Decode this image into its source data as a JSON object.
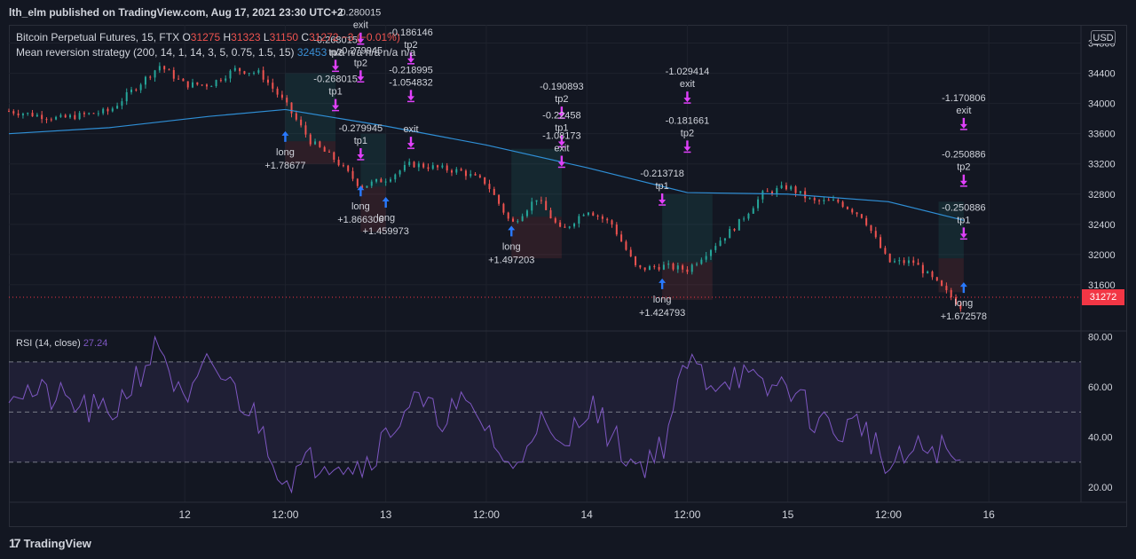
{
  "header": {
    "published": "lth_elm published on TradingView.com, Aug 17, 2021 23:30 UTC+2"
  },
  "legend": {
    "symbol": "Bitcoin Perpetual Futures, 15, FTX",
    "o_label": "O",
    "o_value": "31275",
    "h_label": "H",
    "h_value": "31323",
    "l_label": "L",
    "l_value": "31150",
    "c_label": "C",
    "c_value": "31272",
    "change": "−3 (−0.01%)",
    "strategy": "Mean reversion strategy (200, 14, 1, 14, 3, 5, 0.75, 1.5, 15)",
    "strategy_value": "32453",
    "na_values": "n/a  n/a  n/a  n/a  n/a"
  },
  "rsi_legend": {
    "label": "RSI (14, close)",
    "value": "27.24"
  },
  "currency_button": "USD",
  "last_price": "31272",
  "footer": {
    "brand": "TradingView",
    "logo": "17"
  },
  "colors": {
    "background": "#131722",
    "up": "#26a69a",
    "down": "#ef5350",
    "ma": "#2f8fd6",
    "rsi": "#7e57c2",
    "signal": "#e040fb",
    "entry": "#2979ff"
  },
  "chart_data": [
    {
      "type": "candlestick",
      "title": "",
      "y_axis_labels": [
        "34800",
        "34400",
        "34000",
        "33600",
        "33200",
        "32800",
        "32400",
        "32000",
        "31600"
      ],
      "ylim": [
        31000,
        34900
      ],
      "x_axis_labels": [
        "12",
        "12:00",
        "13",
        "12:00",
        "14",
        "12:00",
        "15",
        "12:00",
        "16"
      ],
      "x_axis_dates": [
        "Aug 12",
        "Aug 12 12:00",
        "Aug 13",
        "Aug 13 12:00",
        "Aug 14",
        "Aug 14 12:00",
        "Aug 15",
        "Aug 15 12:00",
        "Aug 16"
      ],
      "close_path": [
        [
          "Aug 11 03:00",
          33900
        ],
        [
          "Aug 11 09:00",
          33800
        ],
        [
          "Aug 11 15:00",
          33900
        ],
        [
          "Aug 11 21:00",
          34500
        ],
        [
          "Aug 12 00:00",
          34250
        ],
        [
          "Aug 12 03:00",
          34250
        ],
        [
          "Aug 12 06:00",
          34450
        ],
        [
          "Aug 12 09:00",
          34400
        ],
        [
          "Aug 12 12:00",
          34000
        ],
        [
          "Aug 12 15:00",
          33500
        ],
        [
          "Aug 12 18:00",
          33250
        ],
        [
          "Aug 12 21:00",
          32900
        ],
        [
          "Aug 13 00:00",
          33000
        ],
        [
          "Aug 13 03:00",
          33200
        ],
        [
          "Aug 13 09:00",
          33100
        ],
        [
          "Aug 13 12:00",
          32950
        ],
        [
          "Aug 13 15:00",
          32400
        ],
        [
          "Aug 13 18:00",
          32750
        ],
        [
          "Aug 13 21:00",
          32300
        ],
        [
          "Aug 14 00:00",
          32600
        ],
        [
          "Aug 14 03:00",
          32400
        ],
        [
          "Aug 14 06:00",
          31800
        ],
        [
          "Aug 14 09:00",
          31850
        ],
        [
          "Aug 14 12:00",
          31800
        ],
        [
          "Aug 14 15:00",
          32100
        ],
        [
          "Aug 14 18:00",
          32400
        ],
        [
          "Aug 14 21:00",
          32800
        ],
        [
          "Aug 15 00:00",
          32900
        ],
        [
          "Aug 15 03:00",
          32700
        ],
        [
          "Aug 15 06:00",
          32700
        ],
        [
          "Aug 15 09:00",
          32500
        ],
        [
          "Aug 15 12:00",
          31900
        ],
        [
          "Aug 15 15:00",
          31900
        ],
        [
          "Aug 15 18:00",
          31600
        ],
        [
          "Aug 15 21:00",
          31272
        ]
      ],
      "moving_average": [
        [
          "Aug 11 03:00",
          33600
        ],
        [
          "Aug 11 15:00",
          33680
        ],
        [
          "Aug 12 03:00",
          33830
        ],
        [
          "Aug 12 12:00",
          33920
        ],
        [
          "Aug 13 00:00",
          33700
        ],
        [
          "Aug 13 12:00",
          33450
        ],
        [
          "Aug 14 00:00",
          33150
        ],
        [
          "Aug 14 12:00",
          32820
        ],
        [
          "Aug 15 00:00",
          32800
        ],
        [
          "Aug 15 12:00",
          32700
        ],
        [
          "Aug 15 21:00",
          32453
        ]
      ],
      "signals": [
        {
          "time": "Aug 12 12:00",
          "dir": "up",
          "price": 33550,
          "lines": [
            "long",
            "+1.78677"
          ]
        },
        {
          "time": "Aug 12 21:00",
          "dir": "up",
          "price": 32830,
          "lines": [
            "long",
            "+1.866306"
          ]
        },
        {
          "time": "Aug 13 00:00",
          "dir": "up",
          "price": 32680,
          "lines": [
            "long",
            "+1.459973"
          ]
        },
        {
          "time": "Aug 13 15:00",
          "dir": "up",
          "price": 32300,
          "lines": [
            "long",
            "+1.497203"
          ]
        },
        {
          "time": "Aug 14 09:00",
          "dir": "up",
          "price": 31600,
          "lines": [
            "long",
            "+1.424793"
          ]
        },
        {
          "time": "Aug 15 21:00",
          "dir": "up",
          "price": 31550,
          "lines": [
            "long",
            "+1.672578"
          ]
        },
        {
          "time": "Aug 12 18:00",
          "dir": "down",
          "price": 34520,
          "lines": [
            "-0.268015",
            "tp2"
          ]
        },
        {
          "time": "Aug 12 18:00",
          "dir": "down",
          "price": 34000,
          "lines": [
            "-0.268015",
            "tp1"
          ]
        },
        {
          "time": "Aug 12 21:00",
          "dir": "down",
          "price": 34880,
          "lines": [
            "0.280015",
            "exit"
          ]
        },
        {
          "time": "Aug 12 21:00",
          "dir": "down",
          "price": 34380,
          "lines": [
            "-0.279945",
            "tp2"
          ]
        },
        {
          "time": "Aug 12 21:00",
          "dir": "down",
          "price": 33350,
          "lines": [
            "-0.279945",
            "tp1"
          ]
        },
        {
          "time": "Aug 13 03:00",
          "dir": "down",
          "price": 34620,
          "lines": [
            "-0.186146",
            "tp2"
          ]
        },
        {
          "time": "Aug 13 03:00",
          "dir": "down",
          "price": 34120,
          "lines": [
            "-0.218995",
            "-1.054832"
          ]
        },
        {
          "time": "Aug 13 03:00",
          "dir": "down",
          "price": 33500,
          "lines": [
            "exit"
          ]
        },
        {
          "time": "Aug 13 21:00",
          "dir": "down",
          "price": 33900,
          "lines": [
            "-0.190893",
            "tp2"
          ]
        },
        {
          "time": "Aug 13 21:00",
          "dir": "down",
          "price": 33520,
          "lines": [
            "-0.22458",
            "tp1"
          ]
        },
        {
          "time": "Aug 13 21:00",
          "dir": "down",
          "price": 33250,
          "lines": [
            "-1.08173",
            "exit"
          ]
        },
        {
          "time": "Aug 14 12:00",
          "dir": "down",
          "price": 34100,
          "lines": [
            "-1.029414",
            "exit"
          ]
        },
        {
          "time": "Aug 14 12:00",
          "dir": "down",
          "price": 33450,
          "lines": [
            "-0.181661",
            "tp2"
          ]
        },
        {
          "time": "Aug 14 09:00",
          "dir": "down",
          "price": 32750,
          "lines": [
            "-0.213718",
            "tp1"
          ]
        },
        {
          "time": "Aug 15 21:00",
          "dir": "down",
          "price": 33750,
          "lines": [
            "-1.170806",
            "exit"
          ]
        },
        {
          "time": "Aug 15 21:00",
          "dir": "down",
          "price": 33000,
          "lines": [
            "-0.250886",
            "tp2"
          ]
        },
        {
          "time": "Aug 15 21:00",
          "dir": "down",
          "price": 32300,
          "lines": [
            "-0.250886",
            "tp1"
          ]
        }
      ],
      "trade_zones": [
        {
          "start": "Aug 12 12:00",
          "end": "Aug 12 18:00",
          "entry": 33500,
          "top": 34400,
          "bottom": 33200
        },
        {
          "start": "Aug 12 21:00",
          "end": "Aug 13 00:00",
          "entry": 32900,
          "top": 33600,
          "bottom": 32300
        },
        {
          "start": "Aug 13 15:00",
          "end": "Aug 13 21:00",
          "entry": 32500,
          "top": 33400,
          "bottom": 31950
        },
        {
          "start": "Aug 14 09:00",
          "end": "Aug 14 15:00",
          "entry": 31900,
          "top": 32800,
          "bottom": 31400
        },
        {
          "start": "Aug 15 18:00",
          "end": "Aug 15 21:00",
          "entry": 31950,
          "top": 32700,
          "bottom": 31500
        }
      ]
    },
    {
      "type": "line",
      "title": "",
      "series": [
        {
          "name": "RSI (14, close)",
          "values": []
        }
      ],
      "y_axis_labels": [
        "80.00",
        "60.00",
        "40.00",
        "20.00"
      ],
      "ylim": [
        14,
        82
      ],
      "bands": [
        70,
        50,
        30
      ],
      "rsi_path": [
        [
          "Aug 11 03:00",
          60
        ],
        [
          "Aug 11 09:00",
          55
        ],
        [
          "Aug 11 15:00",
          48
        ],
        [
          "Aug 11 21:00",
          78
        ],
        [
          "Aug 12 00:00",
          50
        ],
        [
          "Aug 12 03:00",
          70
        ],
        [
          "Aug 12 06:00",
          58
        ],
        [
          "Aug 12 09:00",
          45
        ],
        [
          "Aug 12 12:00",
          22
        ],
        [
          "Aug 12 15:00",
          30
        ],
        [
          "Aug 12 18:00",
          32
        ],
        [
          "Aug 12 21:00",
          28
        ],
        [
          "Aug 13 00:00",
          40
        ],
        [
          "Aug 13 03:00",
          55
        ],
        [
          "Aug 13 06:00",
          48
        ],
        [
          "Aug 13 09:00",
          52
        ],
        [
          "Aug 13 12:00",
          45
        ],
        [
          "Aug 13 15:00",
          24
        ],
        [
          "Aug 13 18:00",
          48
        ],
        [
          "Aug 13 21:00",
          32
        ],
        [
          "Aug 14 00:00",
          55
        ],
        [
          "Aug 14 03:00",
          40
        ],
        [
          "Aug 14 06:00",
          28
        ],
        [
          "Aug 14 09:00",
          36
        ],
        [
          "Aug 14 12:00",
          70
        ],
        [
          "Aug 14 15:00",
          62
        ],
        [
          "Aug 14 18:00",
          66
        ],
        [
          "Aug 14 21:00",
          58
        ],
        [
          "Aug 15 00:00",
          62
        ],
        [
          "Aug 15 03:00",
          48
        ],
        [
          "Aug 15 06:00",
          42
        ],
        [
          "Aug 15 09:00",
          46
        ],
        [
          "Aug 15 12:00",
          26
        ],
        [
          "Aug 15 15:00",
          34
        ],
        [
          "Aug 15 18:00",
          36
        ],
        [
          "Aug 15 21:00",
          27.24
        ]
      ]
    }
  ]
}
